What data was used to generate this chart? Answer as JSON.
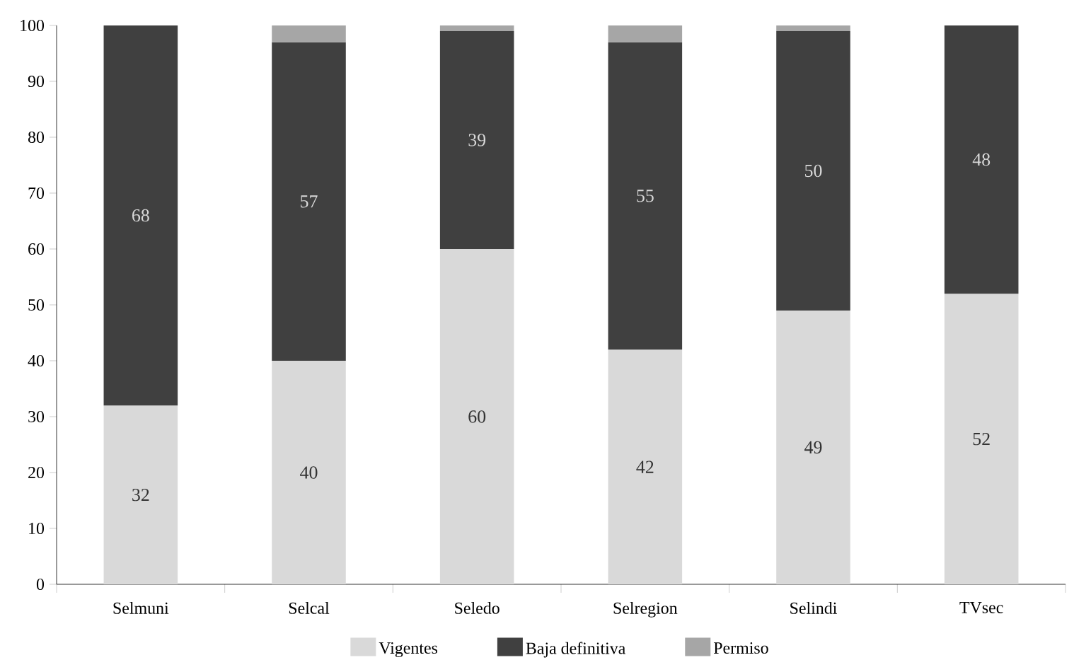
{
  "chart_data": {
    "type": "bar",
    "stacked": true,
    "categories": [
      "Selmuni",
      "Selcal",
      "Seledo",
      "Selregion",
      "Selindi",
      "TVsec"
    ],
    "series": [
      {
        "name": "Vigentes",
        "color": "#d9d9d9",
        "values": [
          32,
          40,
          60,
          42,
          49,
          52
        ],
        "value_labels": [
          "32",
          "40",
          "60",
          "42",
          "49",
          "52"
        ]
      },
      {
        "name": "Baja definitiva",
        "color": "#404040",
        "values": [
          68,
          57,
          39,
          55,
          50,
          48
        ],
        "value_labels": [
          "68",
          "57",
          "39",
          "55",
          "50",
          "48"
        ]
      },
      {
        "name": "Permiso",
        "color": "#a6a6a6",
        "values": [
          null,
          3,
          1,
          3,
          1,
          null
        ]
      }
    ],
    "ylim": [
      0,
      100
    ],
    "yticks": [
      0,
      10,
      20,
      30,
      40,
      50,
      60,
      70,
      80,
      90,
      100
    ],
    "grid": false,
    "legend": "bottom"
  }
}
